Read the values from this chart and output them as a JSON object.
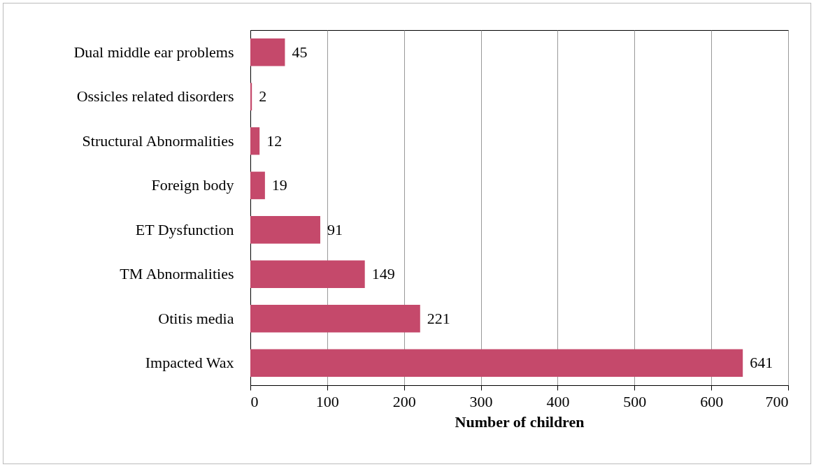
{
  "chart_data": {
    "type": "bar",
    "orientation": "horizontal",
    "xlabel": "Number of children",
    "categories": [
      "Dual middle ear problems",
      "Ossicles related disorders",
      "Structural Abnormalities",
      "Foreign body",
      "ET Dysfunction",
      "TM Abnormalities",
      "Otitis media",
      "Impacted Wax"
    ],
    "values": [
      45,
      2,
      12,
      19,
      91,
      149,
      221,
      641
    ],
    "color": "#c5496b",
    "xlim": [
      0,
      700
    ],
    "xticks": [
      0,
      100,
      200,
      300,
      400,
      500,
      600,
      700
    ],
    "grid": "x",
    "data_labels": true
  }
}
